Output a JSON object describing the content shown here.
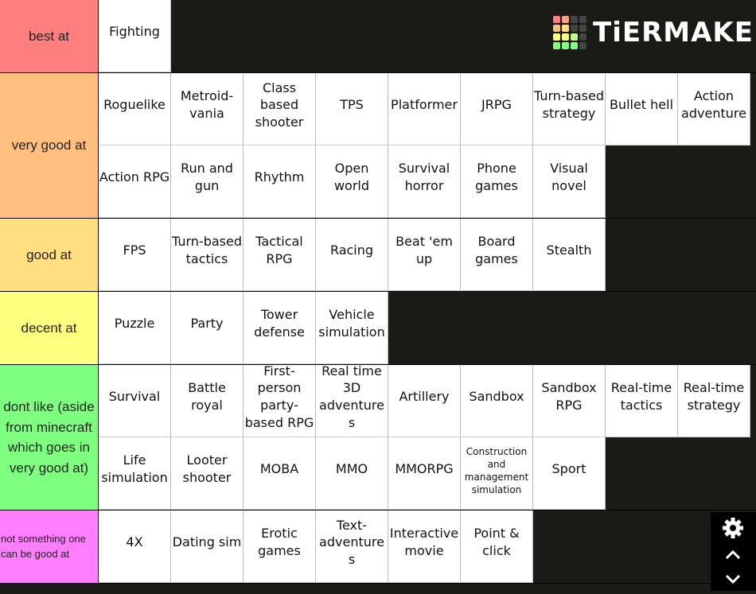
{
  "logo": "TiERMAKER",
  "tiers": [
    {
      "label": "best at",
      "color": "#ff7f7f",
      "items": [
        "Fighting"
      ]
    },
    {
      "label": "very good at",
      "color": "#ffbf7f",
      "items": [
        "Roguelike",
        "Metroid-vania",
        "Class based shooter",
        "TPS",
        "Platformer",
        "JRPG",
        "Turn-based strategy",
        "Bullet hell",
        "Action adventure",
        "Action RPG",
        "Run and gun",
        "Rhythm",
        "Open world",
        "Survival horror",
        "Phone games",
        "Visual novel"
      ]
    },
    {
      "label": "good at",
      "color": "#ffdf7f",
      "items": [
        "FPS",
        "Turn-based tactics",
        "Tactical RPG",
        "Racing",
        "Beat 'em up",
        "Board games",
        "Stealth"
      ]
    },
    {
      "label": "decent at",
      "color": "#ffff7f",
      "items": [
        "Puzzle",
        "Party",
        "Tower defense",
        "Vehicle simulation"
      ]
    },
    {
      "label": "dont like (aside from minecraft which goes in very good at)",
      "color": "#7fff7f",
      "items": [
        "Survival",
        "Battle royal",
        "First-person party-based RPG",
        "Real time 3D adventures",
        "Artillery",
        "Sandbox",
        "Sandbox RPG",
        "Real-time tactics",
        "Real-time strategy",
        "Life simulation",
        "Looter shooter",
        "MOBA",
        "MMO",
        "MMORPG",
        "Construction and management simulation",
        "Sport"
      ]
    },
    {
      "label": "not something one can be good at",
      "color": "#ff7fff",
      "items": [
        "4X",
        "Dating sim",
        "Erotic games",
        "Text-adventures",
        "Interactive movie",
        "Point & click"
      ]
    }
  ]
}
